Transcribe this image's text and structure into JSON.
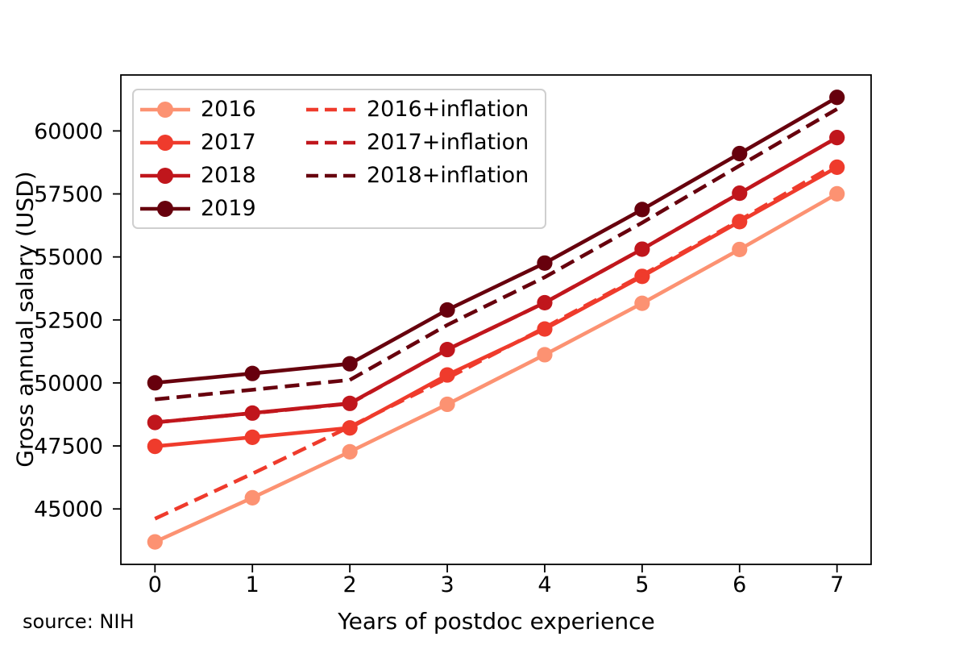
{
  "source_note": "source: NIH",
  "chart_data": {
    "type": "line",
    "title": "",
    "xlabel": "Years of postdoc experience",
    "ylabel": "Gross annual salary (USD)",
    "x": [
      0,
      1,
      2,
      3,
      4,
      5,
      6,
      7
    ],
    "xticks": [
      0,
      1,
      2,
      3,
      4,
      5,
      6,
      7
    ],
    "yticks": [
      45000,
      47500,
      50000,
      52500,
      55000,
      57500,
      60000
    ],
    "xlim": [
      -0.35,
      7.35
    ],
    "ylim": [
      42800,
      62220
    ],
    "grid": false,
    "legend_location": "upper left",
    "legend_columns": 2,
    "series": [
      {
        "name": "2016",
        "color": "#FC9272",
        "style": "solid",
        "marker": true,
        "values": [
          43692,
          45444,
          47268,
          49152,
          51120,
          53160,
          55296,
          57504
        ]
      },
      {
        "name": "2017",
        "color": "#EF3B2C",
        "style": "solid",
        "marker": true,
        "values": [
          47484,
          47844,
          48216,
          50316,
          52140,
          54228,
          56400,
          58560
        ]
      },
      {
        "name": "2018",
        "color": "#C0161C",
        "style": "solid",
        "marker": true,
        "values": [
          48432,
          48804,
          49188,
          51324,
          53184,
          55308,
          57528,
          59736
        ]
      },
      {
        "name": "2019",
        "color": "#67000D",
        "style": "solid",
        "marker": true,
        "values": [
          50004,
          50376,
          50760,
          52896,
          54756,
          56880,
          59100,
          61332
        ]
      },
      {
        "name": "2016+inflation",
        "color": "#EF3B2C",
        "style": "dashed",
        "marker": false,
        "values": [
          44610,
          46400,
          48260,
          50185,
          52195,
          54275,
          56455,
          58710
        ]
      },
      {
        "name": "2017+inflation",
        "color": "#C0161C",
        "style": "dashed",
        "marker": false,
        "values": [
          48435,
          48800,
          49180,
          51320,
          53185,
          55310,
          57530,
          59730
        ]
      },
      {
        "name": "2018+inflation",
        "color": "#67000D",
        "style": "dashed",
        "marker": false,
        "values": [
          49350,
          49730,
          50120,
          52300,
          54195,
          56360,
          58620,
          60870
        ]
      }
    ]
  }
}
